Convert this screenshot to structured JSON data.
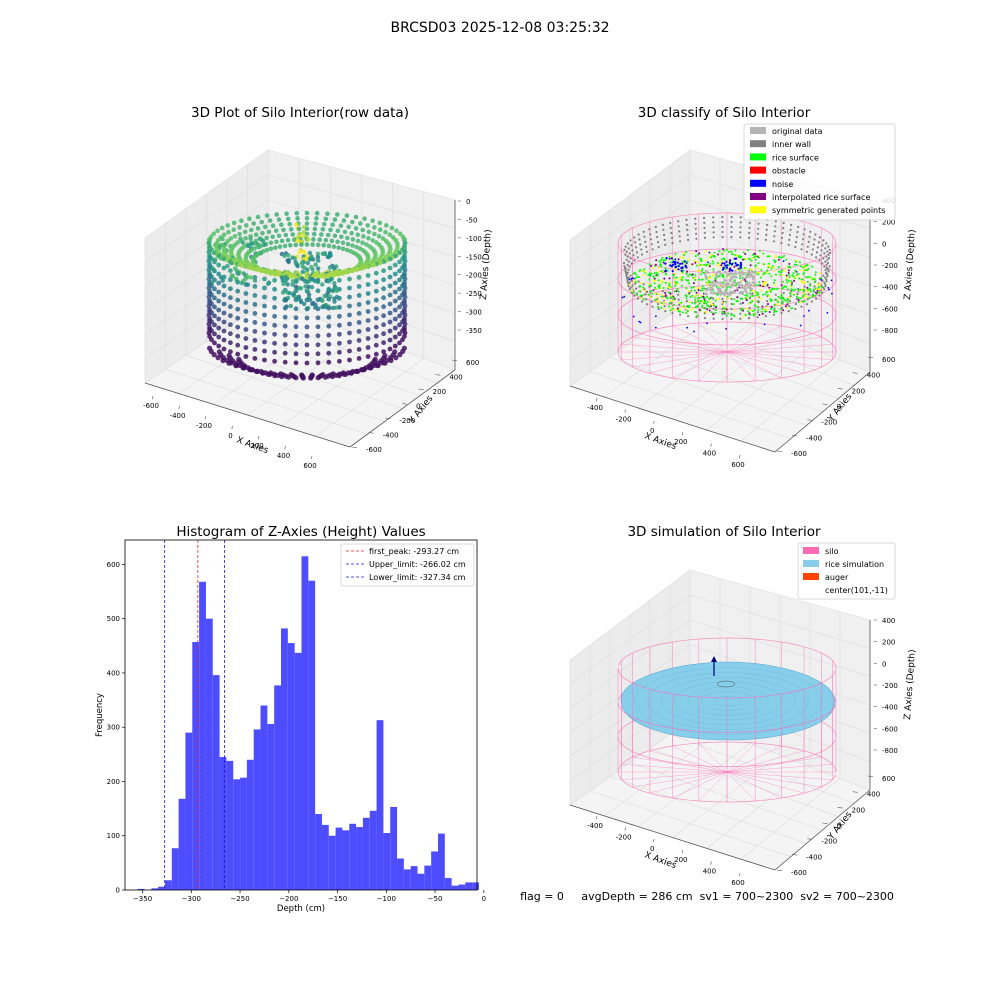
{
  "figure": {
    "suptitle": "BRCSD03 2025-12-08 03:25:32",
    "footer": "flag = 0     avgDepth = 286 cm  sv1 = 700~2300  sv2 = 700~2300"
  },
  "colors": {
    "hist_bar": "#4d4dff",
    "first_peak": "#e0252b",
    "limits": "#1a1acc",
    "silo": "#ff69b4",
    "rice_simulation": "#87ceeb",
    "auger": "#ff4500",
    "original_data": "#b4b4b4",
    "inner_wall": "#808080",
    "rice_surface": "#00ff00",
    "obstacle": "#ff0000",
    "noise": "#0000ff",
    "interpolated_rice_surface": "#800080",
    "symmetric_generated_points": "#ffff00"
  },
  "chart_data": [
    {
      "id": "raw",
      "type": "scatter",
      "title": "3D Plot of Silo Interior(row data)",
      "xlabel": "X Axies",
      "ylabel": "Y Axies",
      "zlabel": "Z Axies (Depth)",
      "xticks": [
        "-600",
        "-400",
        "-200",
        "0",
        "200",
        "400",
        "600"
      ],
      "yticks": [
        "-600",
        "-400",
        "-200",
        "0",
        "200",
        "400",
        "600"
      ],
      "zticks": [
        "0",
        "-50",
        "-100",
        "-150",
        "-200",
        "-250",
        "-300",
        "-350"
      ],
      "colormap": "viridis"
    },
    {
      "id": "classify",
      "type": "scatter",
      "title": "3D classify of Silo Interior",
      "xlabel": "X Axies",
      "ylabel": "Y Axies",
      "zlabel": "Z Axies (Depth)",
      "xticks": [
        "-400",
        "-200",
        "0",
        "200",
        "400",
        "600"
      ],
      "yticks": [
        "-600",
        "-400",
        "-200",
        "0",
        "200",
        "400",
        "600"
      ],
      "zticks": [
        "400",
        "200",
        "0",
        "-200",
        "-400",
        "-600",
        "-800"
      ],
      "legend": [
        {
          "label": "original data",
          "color": "#b4b4b4"
        },
        {
          "label": "inner wall",
          "color": "#808080"
        },
        {
          "label": "rice surface",
          "color": "#00ff00"
        },
        {
          "label": "obstacle",
          "color": "#ff0000"
        },
        {
          "label": "noise",
          "color": "#0000ff"
        },
        {
          "label": "interpolated rice surface",
          "color": "#800080"
        },
        {
          "label": "symmetric generated points",
          "color": "#ffff00"
        }
      ],
      "legend_position": "top-right"
    },
    {
      "id": "hist",
      "type": "bar",
      "title": "Histogram of Z-Axies (Height) Values",
      "xlabel": "Depth (cm)",
      "ylabel": "Frequency",
      "xlim": [
        -368,
        -7
      ],
      "ylim": [
        0,
        645
      ],
      "xticks": [
        -350,
        -300,
        -250,
        -200,
        -150,
        -100,
        -50,
        0
      ],
      "yticks": [
        0,
        100,
        200,
        300,
        400,
        500,
        600
      ],
      "bin_start": -355,
      "bin_width": 7,
      "values": [
        2,
        0,
        3,
        6,
        18,
        77,
        168,
        290,
        457,
        568,
        500,
        396,
        245,
        238,
        204,
        207,
        240,
        296,
        340,
        306,
        377,
        482,
        455,
        437,
        615,
        570,
        140,
        120,
        100,
        115,
        110,
        122,
        116,
        133,
        146,
        313,
        105,
        153,
        58,
        38,
        44,
        30,
        45,
        71,
        104,
        22,
        8,
        10,
        14,
        14
      ],
      "vlines": [
        {
          "label": "first_peak: -293.27 cm",
          "x": -293.27,
          "color": "#e0252b"
        },
        {
          "label": "Upper_limit: -266.02 cm",
          "x": -266.02,
          "color": "#1a1acc"
        },
        {
          "label": "Lower_limit: -327.34 cm",
          "x": -327.34,
          "color": "#1a1acc"
        }
      ],
      "legend_position": "top-right"
    },
    {
      "id": "simulation",
      "type": "scatter",
      "title": "3D simulation of Silo Interior",
      "xlabel": "X Axies",
      "ylabel": "Y Axies",
      "zlabel": "Z Axies (Depth)",
      "xticks": [
        "-400",
        "-200",
        "0",
        "200",
        "400",
        "600"
      ],
      "yticks": [
        "-600",
        "-400",
        "-200",
        "0",
        "200",
        "400",
        "600"
      ],
      "zticks": [
        "400",
        "200",
        "0",
        "-200",
        "-400",
        "-600",
        "-800"
      ],
      "legend": [
        {
          "label": "silo",
          "color": "#ff69b4"
        },
        {
          "label": "rice simulation",
          "color": "#87ceeb"
        },
        {
          "label": "auger",
          "color": "#ff4500"
        },
        {
          "label": "center(101,-11)",
          "color": ""
        }
      ],
      "legend_position": "top-right"
    }
  ]
}
